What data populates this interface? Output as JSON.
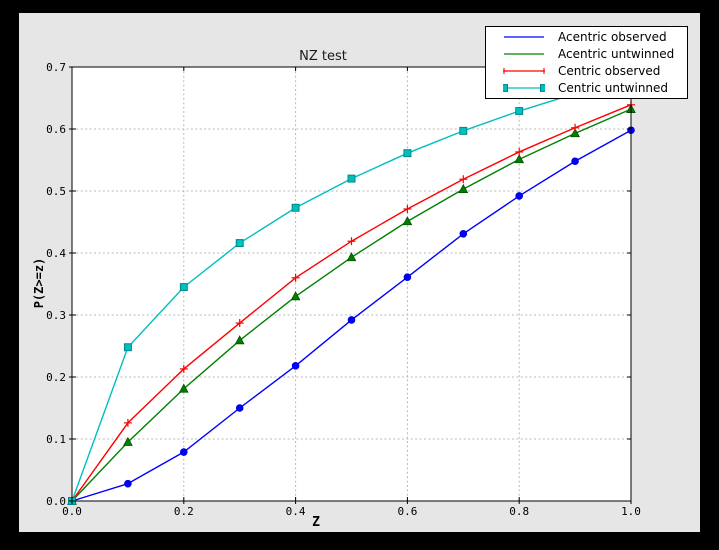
{
  "chart_data": {
    "type": "line",
    "title": "NZ test",
    "xlabel": "Z",
    "ylabel": "P(Z>=z)",
    "xlim": [
      0.0,
      1.0
    ],
    "ylim": [
      0.0,
      0.7
    ],
    "x_ticks": [
      "0.0",
      "0.2",
      "0.4",
      "0.6",
      "0.8",
      "1.0"
    ],
    "y_ticks": [
      "0.0",
      "0.1",
      "0.2",
      "0.3",
      "0.4",
      "0.5",
      "0.6",
      "0.7"
    ],
    "grid": true,
    "grid_color": "#b8b8b8",
    "legend_position": "upper right",
    "x": [
      0.0,
      0.1,
      0.2,
      0.3,
      0.4,
      0.5,
      0.6,
      0.7,
      0.8,
      0.9,
      1.0
    ],
    "series": [
      {
        "name": "Acentric observed",
        "color": "#0000ff",
        "marker": "circle",
        "marker_edge": "#0000cc",
        "legend_marker": "none",
        "values": [
          0.0,
          0.028,
          0.079,
          0.15,
          0.218,
          0.292,
          0.361,
          0.431,
          0.492,
          0.548,
          0.598
        ]
      },
      {
        "name": "Acentric untwinned",
        "color": "#008000",
        "marker": "triangle",
        "marker_edge": "#005000",
        "legend_marker": "none",
        "values": [
          0.0,
          0.095,
          0.181,
          0.259,
          0.33,
          0.393,
          0.451,
          0.503,
          0.551,
          0.593,
          0.632
        ]
      },
      {
        "name": "Centric observed",
        "color": "#ff0000",
        "marker": "plus",
        "marker_edge": "#ff0000",
        "legend_marker": "plus",
        "values": [
          0.0,
          0.126,
          0.213,
          0.287,
          0.36,
          0.419,
          0.471,
          0.519,
          0.563,
          0.602,
          0.639
        ]
      },
      {
        "name": "Centric untwinned",
        "color": "#00bfbf",
        "marker": "square",
        "marker_edge": "#008080",
        "legend_marker": "square",
        "values": [
          0.0,
          0.248,
          0.345,
          0.416,
          0.473,
          0.52,
          0.561,
          0.597,
          0.629,
          0.657,
          0.683
        ]
      }
    ],
    "colors": {
      "figure_background": "#e6e6e6",
      "plot_background": "#ffffff",
      "frame": "#000000",
      "axis": "#000000"
    }
  }
}
